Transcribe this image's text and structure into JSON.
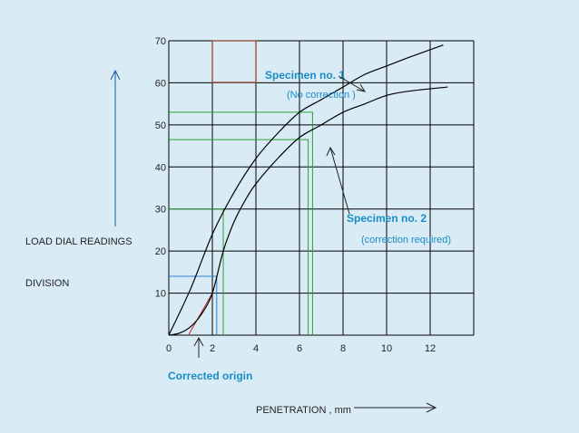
{
  "chart_data": {
    "type": "line",
    "xlabel": "PENETRATION , mm",
    "ylabel_line1": "LOAD DIAL READINGS",
    "ylabel_line2": "DIVISION",
    "xlim": [
      0,
      14
    ],
    "ylim": [
      0,
      70
    ],
    "x_ticks": [
      0,
      2,
      4,
      6,
      8,
      10,
      12
    ],
    "y_ticks": [
      10,
      20,
      30,
      40,
      50,
      60,
      70
    ],
    "grid": true,
    "series": [
      {
        "name": "Specimen no. 1",
        "note": "(No correction )",
        "color": "#000000",
        "x": [
          0,
          1,
          2,
          3,
          4,
          5,
          6,
          7,
          8,
          9,
          10,
          11,
          12.6
        ],
        "y": [
          0,
          11,
          24,
          34,
          42,
          48,
          53,
          56,
          59,
          62,
          64,
          66,
          69
        ]
      },
      {
        "name": "Specimen no. 2",
        "note": "(correction required)",
        "color": "#000000",
        "x": [
          0,
          0.5,
          1,
          1.5,
          2,
          2.5,
          3,
          3.5,
          4,
          5,
          6,
          7,
          8,
          9,
          10,
          11,
          12.8
        ],
        "y": [
          0,
          0.5,
          2,
          5,
          10,
          20,
          27,
          32,
          36,
          42,
          47,
          50,
          53,
          55,
          57,
          58,
          59
        ]
      }
    ],
    "annotations": [
      {
        "text": "Corrected origin",
        "x": 1.2,
        "y": 0,
        "color": "#1a8cc6"
      }
    ],
    "reference_lines": [
      {
        "x": 2.5,
        "y": 30,
        "color": "#2e9e3a"
      },
      {
        "x": 2.2,
        "y": 14,
        "color": "#2e7fd0"
      },
      {
        "x": 6.4,
        "y": 46.5,
        "color": "#2e9e3a"
      },
      {
        "x": 6.6,
        "y": 53,
        "color": "#2e9e3a"
      }
    ],
    "tangent": {
      "x1": 0.9,
      "y1": 0,
      "x2": 2,
      "y2": 10,
      "color": "#cc2222"
    }
  },
  "colors": {
    "background": "#d9ecf6",
    "grid": "#000000",
    "label_blue": "#1a8cc6",
    "arrow_blue": "#1f5aa8"
  }
}
